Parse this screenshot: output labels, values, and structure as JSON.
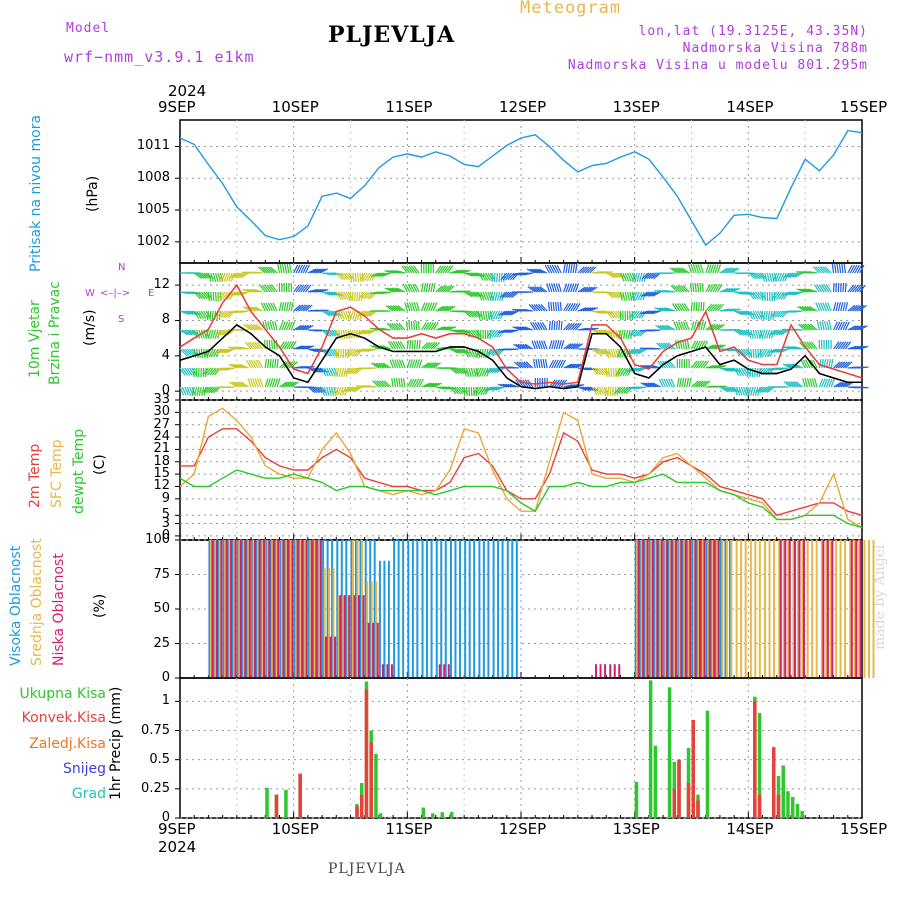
{
  "header": {
    "model_label": "Model",
    "model_name": "wrf−nmm_v3.9.1  e1km",
    "station": "PLJEVLJA",
    "product": "Meteogram",
    "coords": "lon,lat (19.3125E, 43.35N)",
    "altitude": "Nadmorska Visina 788m",
    "model_altitude": "Nadmorska Visina u modelu 801.295m",
    "year": "2024"
  },
  "footer": {
    "station": "PLJEVLJA",
    "watermark": "made by Angel"
  },
  "colors": {
    "pressure": "#1e9be0",
    "wind_speed": "#000000",
    "gust": "#e8403c",
    "temp2m": "#e8403c",
    "sfc": "#e8a838",
    "dew": "#2ec82e",
    "high_cloud": "#1e9be0",
    "mid_cloud": "#e8b84a",
    "low_cloud": "#d02070",
    "precip": "#2ec82e",
    "conv": "#e8403c",
    "frz": "#e87828",
    "snow": "#4040e0",
    "hail": "#20c0c0",
    "label_purple": "#b03cdc"
  },
  "x_axis": {
    "days": [
      "9SEP",
      "10SEP",
      "11SEP",
      "12SEP",
      "13SEP",
      "14SEP",
      "15SEP"
    ],
    "start": "2024-09-09T00",
    "end": "2024-09-15T00",
    "step_hours": 3
  },
  "panels": {
    "pressure": {
      "label": "Pritisak na nivou mora",
      "unit": "(hPa)",
      "ticks": [
        1002,
        1005,
        1008,
        1011
      ]
    },
    "wind": {
      "label1": "10m Vjetar",
      "label2": "Brzina i Pravac",
      "unit": "(m/s)",
      "ticks": [
        0,
        4,
        8,
        12
      ],
      "compass": {
        "n": "N",
        "s": "S",
        "e": "E",
        "w": "W"
      }
    },
    "temp": {
      "label1": "2m Temp",
      "label2": "SFC Temp",
      "label3": "dewpt Temp",
      "unit": "(C)",
      "ticks": [
        0,
        3,
        5,
        9,
        12,
        15,
        18,
        21,
        24,
        27,
        30,
        33
      ]
    },
    "cloud": {
      "label1": "Visoka Oblacnost",
      "label2": "Srednja Oblacnost",
      "label3": "Niska Oblacnost",
      "unit": "(%)",
      "ticks": [
        0,
        25,
        50,
        75,
        100
      ]
    },
    "precip": {
      "legend": [
        "Ukupna Kisa",
        "Konvek.Kisa",
        "Zaledj.Kisa",
        "Snijeg",
        "Grad"
      ],
      "unit": "1hr Precip (mm)",
      "ticks": [
        "0",
        "0.25",
        "0.5",
        "0.75",
        "1"
      ]
    }
  },
  "chart_data": [
    {
      "type": "line",
      "title": "Pritisak na nivou mora",
      "ylabel": "(hPa)",
      "ylim": [
        1000,
        1013.5
      ],
      "x": [
        "09-09 00",
        "09-09 03",
        "09-09 06",
        "09-09 09",
        "09-09 12",
        "09-09 15",
        "09-09 18",
        "09-09 21",
        "09-10 00",
        "09-10 03",
        "09-10 06",
        "09-10 09",
        "09-10 12",
        "09-10 15",
        "09-10 18",
        "09-10 21",
        "09-11 00",
        "09-11 03",
        "09-11 06",
        "09-11 09",
        "09-11 12",
        "09-11 15",
        "09-11 18",
        "09-11 21",
        "09-12 00",
        "09-12 03",
        "09-12 06",
        "09-12 09",
        "09-12 12",
        "09-12 15",
        "09-12 18",
        "09-12 21",
        "09-13 00",
        "09-13 03",
        "09-13 06",
        "09-13 09",
        "09-13 12",
        "09-13 15",
        "09-13 18",
        "09-13 21",
        "09-14 00",
        "09-14 03",
        "09-14 06",
        "09-14 09",
        "09-14 12",
        "09-14 15",
        "09-14 18",
        "09-14 21",
        "09-15 00"
      ],
      "series": [
        {
          "values": [
            1011.8,
            1011.2,
            1009.3,
            1007.5,
            1005.3,
            1004,
            1002.6,
            1002.2,
            1002.5,
            1003.5,
            1006.3,
            1006.6,
            1006.1,
            1007.3,
            1009,
            1010,
            1010.3,
            1010,
            1010.5,
            1010.1,
            1009.3,
            1009.1,
            1010.1,
            1011.1,
            1011.8,
            1012.1,
            1011,
            1009.7,
            1008.6,
            1009.2,
            1009.4,
            1010,
            1010.5,
            1009.8,
            1008.1,
            1006.3,
            1004,
            1001.7,
            1002.8,
            1004.5,
            1004.6,
            1004.3,
            1004.2,
            1007.1,
            1009.8,
            1008.7,
            1010.2,
            1012.5,
            1012.3
          ]
        }
      ]
    },
    {
      "type": "line",
      "title": "10m Vjetar Brzina i Pravac",
      "ylabel": "(m/s)",
      "ylim": [
        -1,
        14.5
      ],
      "x": [
        "09-09 00",
        "09-09 03",
        "09-09 06",
        "09-09 09",
        "09-09 12",
        "09-09 15",
        "09-09 18",
        "09-09 21",
        "09-10 00",
        "09-10 03",
        "09-10 06",
        "09-10 09",
        "09-10 12",
        "09-10 15",
        "09-10 18",
        "09-10 21",
        "09-11 00",
        "09-11 03",
        "09-11 06",
        "09-11 09",
        "09-11 12",
        "09-11 15",
        "09-11 18",
        "09-11 21",
        "09-12 00",
        "09-12 03",
        "09-12 06",
        "09-12 09",
        "09-12 12",
        "09-12 15",
        "09-12 18",
        "09-12 21",
        "09-13 00",
        "09-13 03",
        "09-13 06",
        "09-13 09",
        "09-13 12",
        "09-13 15",
        "09-13 18",
        "09-13 21",
        "09-14 00",
        "09-14 03",
        "09-14 06",
        "09-14 09",
        "09-14 12",
        "09-14 15",
        "09-14 18",
        "09-14 21",
        "09-15 00"
      ],
      "series": [
        {
          "values": [
            3.5,
            4,
            4.5,
            6,
            7.5,
            6.5,
            5,
            4,
            1.5,
            1,
            3.5,
            6,
            6.5,
            6,
            5,
            4.5,
            4.5,
            4.5,
            4.5,
            5,
            5,
            4.5,
            3.5,
            1.5,
            0.5,
            0.3,
            0.5,
            0.3,
            0.5,
            6.5,
            6.5,
            5,
            2,
            1.5,
            3,
            4,
            4.5,
            5,
            3,
            3.5,
            2.5,
            2,
            2,
            2.5,
            4,
            2,
            1.5,
            1,
            1
          ]
        },
        {
          "values": [
            5,
            6,
            7,
            10,
            12,
            9,
            7,
            5,
            2.5,
            2,
            5,
            9,
            9.5,
            8.5,
            7,
            6,
            6,
            6.5,
            6,
            6.5,
            6.5,
            6,
            5,
            2.5,
            1,
            0.8,
            1,
            0.8,
            1,
            7.5,
            7.5,
            6,
            3,
            2.5,
            4.5,
            5.5,
            6,
            9,
            4.5,
            5,
            3.5,
            3,
            3,
            7.5,
            5,
            3,
            2.5,
            2,
            1.5
          ]
        }
      ]
    },
    {
      "type": "line",
      "title": "2m Temp / SFC Temp / dewpt Temp",
      "ylabel": "(C)",
      "ylim": [
        -1,
        33
      ],
      "x": [
        "09-09 00",
        "09-09 03",
        "09-09 06",
        "09-09 09",
        "09-09 12",
        "09-09 15",
        "09-09 18",
        "09-09 21",
        "09-10 00",
        "09-10 03",
        "09-10 06",
        "09-10 09",
        "09-10 12",
        "09-10 15",
        "09-10 18",
        "09-10 21",
        "09-11 00",
        "09-11 03",
        "09-11 06",
        "09-11 09",
        "09-11 12",
        "09-11 15",
        "09-11 18",
        "09-11 21",
        "09-12 00",
        "09-12 03",
        "09-12 06",
        "09-12 09",
        "09-12 12",
        "09-12 15",
        "09-12 18",
        "09-12 21",
        "09-13 00",
        "09-13 03",
        "09-13 06",
        "09-13 09",
        "09-13 12",
        "09-13 15",
        "09-13 18",
        "09-13 21",
        "09-14 00",
        "09-14 03",
        "09-14 06",
        "09-14 09",
        "09-14 12",
        "09-14 15",
        "09-14 18",
        "09-14 21",
        "09-15 00"
      ],
      "series": [
        {
          "name": "2m Temp",
          "values": [
            17,
            17,
            24,
            26,
            26,
            23,
            19,
            17,
            16,
            16,
            19,
            21,
            19,
            14,
            13,
            12,
            12,
            11,
            11,
            13,
            19,
            20,
            17,
            11,
            9,
            9,
            15,
            25,
            23,
            16,
            15,
            15,
            14,
            15,
            18,
            19,
            17,
            15,
            12,
            11,
            10,
            9,
            5,
            6,
            7,
            8,
            8,
            6,
            5
          ]
        },
        {
          "name": "SFC Temp",
          "values": [
            12,
            15,
            29,
            31,
            28,
            24,
            17,
            15,
            14,
            14,
            21,
            25,
            20,
            12,
            11,
            10,
            11,
            10,
            11,
            16,
            26,
            25,
            16,
            9,
            6,
            6,
            18,
            30,
            28,
            15,
            14,
            14,
            13,
            15,
            19,
            20,
            17,
            14,
            11,
            10,
            9,
            8,
            4,
            4,
            5,
            8,
            15,
            4,
            2
          ]
        },
        {
          "name": "dewpt Temp",
          "values": [
            14,
            12,
            12,
            14,
            16,
            15,
            14,
            14,
            15,
            14,
            13,
            11,
            12,
            12,
            11,
            11,
            11,
            11,
            10,
            11,
            12,
            12,
            12,
            11,
            8,
            6,
            12,
            12,
            13,
            12,
            12,
            13,
            13,
            14,
            15,
            13,
            13,
            13,
            11,
            10,
            8,
            7,
            4,
            4,
            5,
            5,
            5,
            3,
            2
          ]
        }
      ]
    },
    {
      "type": "bar",
      "title": "Visoka / Srednja / Niska Oblacnost",
      "ylabel": "(%)",
      "ylim": [
        0,
        100
      ],
      "x": [
        "09-09 00",
        "09-09 03",
        "09-09 06",
        "09-09 09",
        "09-09 12",
        "09-09 15",
        "09-09 18",
        "09-09 21",
        "09-10 00",
        "09-10 03",
        "09-10 06",
        "09-10 09",
        "09-10 12",
        "09-10 15",
        "09-10 18",
        "09-10 21",
        "09-11 00",
        "09-11 03",
        "09-11 06",
        "09-11 09",
        "09-11 12",
        "09-11 15",
        "09-11 18",
        "09-11 21",
        "09-12 00",
        "09-12 03",
        "09-12 06",
        "09-12 09",
        "09-12 12",
        "09-12 15",
        "09-12 18",
        "09-12 21",
        "09-13 00",
        "09-13 03",
        "09-13 06",
        "09-13 09",
        "09-13 12",
        "09-13 15",
        "09-13 18",
        "09-13 21",
        "09-14 00",
        "09-14 03",
        "09-14 06",
        "09-14 09",
        "09-14 12",
        "09-14 15",
        "09-14 18",
        "09-14 21",
        "09-15 00"
      ],
      "series": [
        {
          "name": "Visoka Oblacnost",
          "values": [
            0,
            0,
            100,
            100,
            100,
            100,
            100,
            100,
            100,
            100,
            100,
            100,
            100,
            100,
            85,
            100,
            100,
            100,
            100,
            100,
            100,
            100,
            100,
            100,
            0,
            0,
            0,
            0,
            0,
            0,
            0,
            0,
            100,
            100,
            100,
            100,
            100,
            100,
            100,
            0,
            0,
            0,
            0,
            0,
            0,
            0,
            0,
            0,
            0
          ]
        },
        {
          "name": "Srednja Oblacnost",
          "values": [
            0,
            0,
            100,
            100,
            100,
            100,
            100,
            100,
            100,
            100,
            80,
            60,
            100,
            70,
            0,
            0,
            0,
            0,
            0,
            0,
            0,
            0,
            0,
            0,
            0,
            0,
            0,
            0,
            0,
            0,
            0,
            0,
            100,
            100,
            100,
            100,
            100,
            100,
            100,
            100,
            100,
            100,
            100,
            100,
            100,
            100,
            100,
            100,
            100
          ]
        },
        {
          "name": "Niska Oblacnost",
          "values": [
            0,
            0,
            100,
            100,
            100,
            100,
            100,
            100,
            100,
            100,
            30,
            60,
            60,
            40,
            10,
            0,
            0,
            0,
            10,
            0,
            0,
            0,
            0,
            0,
            0,
            0,
            0,
            0,
            0,
            10,
            10,
            0,
            100,
            100,
            100,
            100,
            100,
            100,
            0,
            0,
            0,
            0,
            100,
            100,
            0,
            100,
            0,
            100,
            0
          ]
        }
      ]
    },
    {
      "type": "bar",
      "title": "1hr Precip",
      "ylabel": "1hr Precip (mm)",
      "ylim": [
        0,
        1.2
      ],
      "x": [
        "09-09 18",
        "09-09 20",
        "09-09 22",
        "09-10 01",
        "09-10 13",
        "09-10 14",
        "09-10 15",
        "09-10 16",
        "09-10 17",
        "09-10 18",
        "09-10 20",
        "09-11 03",
        "09-11 05",
        "09-11 07",
        "09-11 09",
        "09-13 00",
        "09-13 03",
        "09-13 04",
        "09-13 07",
        "09-13 08",
        "09-13 09",
        "09-13 11",
        "09-13 12",
        "09-13 13",
        "09-13 15",
        "09-14 01",
        "09-14 02",
        "09-14 05",
        "09-14 06",
        "09-14 07",
        "09-14 08",
        "09-14 09",
        "09-14 10",
        "09-14 11"
      ],
      "series": [
        {
          "name": "Ukupna Kisa",
          "values": [
            0.26,
            0.2,
            0.24,
            0.38,
            0.12,
            0.3,
            1.17,
            0.75,
            0.55,
            0.04,
            0.01,
            0.09,
            0.04,
            0.05,
            0.05,
            0.31,
            1.18,
            0.62,
            1.12,
            0.48,
            0.5,
            0.6,
            0.84,
            0.2,
            0.92,
            1.04,
            0.9,
            0.61,
            0.36,
            0.45,
            0.23,
            0.18,
            0.12,
            0.06
          ]
        },
        {
          "name": "Konvek.Kisa",
          "values": [
            0,
            0.2,
            0,
            0.38,
            0.1,
            0.2,
            1.1,
            0.65,
            0,
            0,
            0,
            0,
            0,
            0,
            0,
            0,
            0,
            0,
            0,
            0.25,
            0.5,
            0.3,
            0.84,
            0.15,
            0,
            1,
            0.2,
            0.6,
            0.2,
            0,
            0,
            0,
            0,
            0
          ]
        }
      ]
    }
  ]
}
